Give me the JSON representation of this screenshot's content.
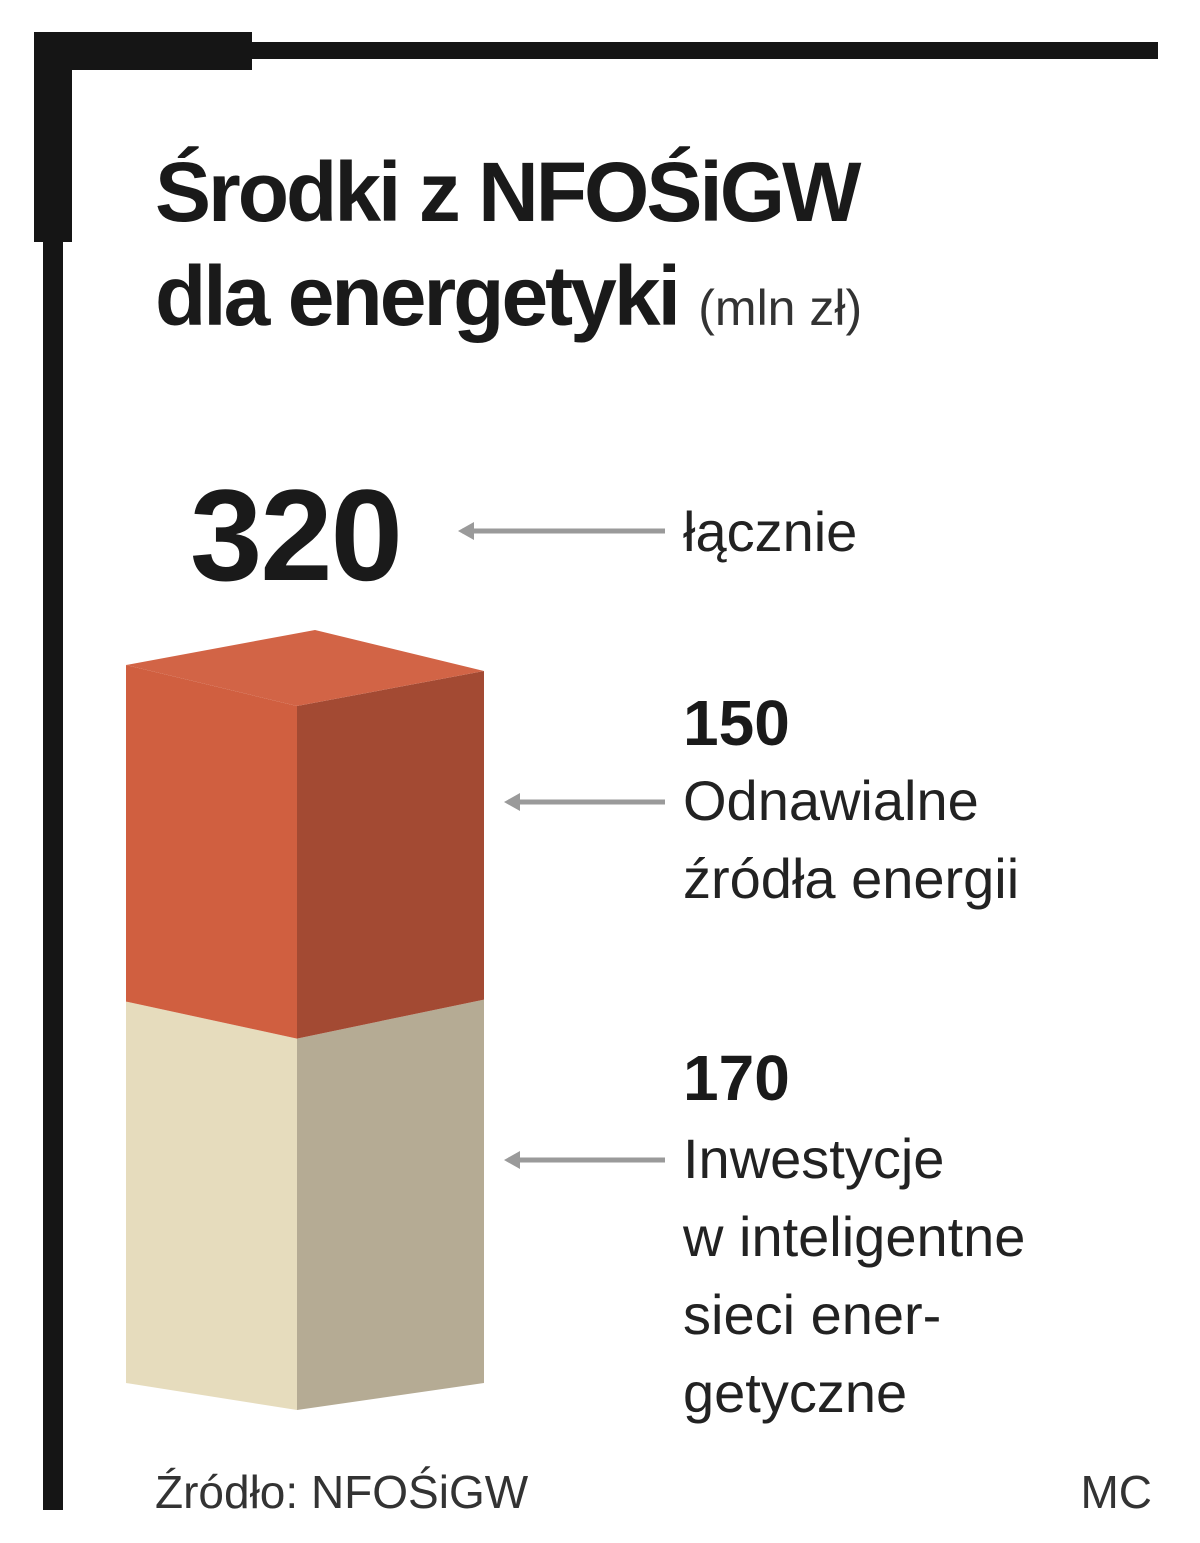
{
  "header": {
    "title_line1": "Środki z NFOŚiGW",
    "title_line2": "dla energetyki",
    "unit": "(mln zł)"
  },
  "total": {
    "value": "320",
    "label": "łącznie"
  },
  "segments": [
    {
      "value": "150",
      "label_lines": [
        "Odnawialne",
        "źródła energii"
      ]
    },
    {
      "value": "170",
      "label_lines": [
        "Inwestycje",
        "w inteligentne",
        "sieci ener-",
        "getyczne"
      ]
    }
  ],
  "footer": {
    "source": "Źródło: NFOŚiGW",
    "credit": "MC"
  },
  "colors": {
    "renewables_front": "#d05f40",
    "renewables_side": "#a34a33",
    "renewables_top": "#d26446",
    "grid_front": "#e6dcbd",
    "grid_side": "#b5ab94"
  },
  "chart_data": {
    "type": "bar",
    "stacked": true,
    "title": "Środki z NFOŚiGW dla energetyki",
    "unit": "mln zł",
    "total": 320,
    "categories": [
      "łącznie"
    ],
    "series": [
      {
        "name": "Inwestycje w inteligentne sieci energetyczne",
        "values": [
          170
        ]
      },
      {
        "name": "Odnawialne źródła energii",
        "values": [
          150
        ]
      }
    ]
  }
}
